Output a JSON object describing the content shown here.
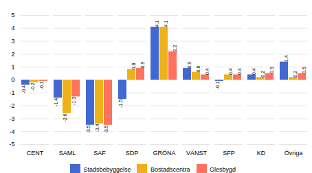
{
  "chart_data": {
    "type": "bar",
    "categories": [
      "CENT",
      "SAML",
      "SAF",
      "SDP",
      "GRÖNA",
      "VÄNST",
      "SFP",
      "KD",
      "Övriga"
    ],
    "series": [
      {
        "name": "Stadsbebyggelse",
        "values": [
          -0.4,
          -1.4,
          -3.5,
          -1.5,
          4.1,
          0.9,
          -0.1,
          0.4,
          1.4
        ]
      },
      {
        "name": "Bostadscentra",
        "values": [
          -0.2,
          -2.6,
          -3.4,
          0.8,
          4.1,
          0.6,
          0.4,
          0.2,
          0.2
        ]
      },
      {
        "name": "Glesbygd",
        "values": [
          -0.1,
          -1.3,
          -3.5,
          0.9,
          2.2,
          0.4,
          0.4,
          0.5,
          0.5
        ]
      }
    ],
    "ylim": [
      -5,
      5
    ],
    "yticks": [
      -5,
      -4,
      -3,
      -2,
      -1,
      0,
      1,
      2,
      3,
      4,
      5
    ],
    "grid": true,
    "data_labels": true,
    "legend": "bottom"
  }
}
